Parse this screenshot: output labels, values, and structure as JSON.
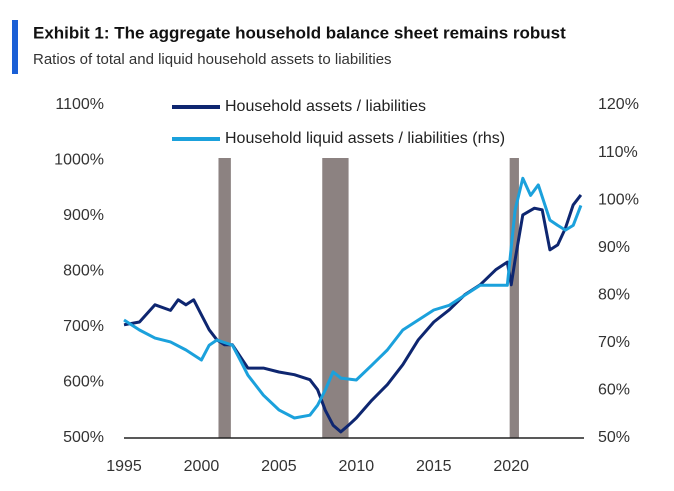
{
  "chart_data": {
    "type": "line",
    "title": "Exhibit 1: The aggregate household balance sheet remains robust",
    "subtitle": "Ratios of total and liquid household assets to liabilities",
    "xlim": [
      1995,
      2024.7
    ],
    "xticks": [
      1995,
      2000,
      2005,
      2010,
      2015,
      2020
    ],
    "ylim": [
      500,
      1100
    ],
    "yticks": [
      {
        "value": 500,
        "label": "500%"
      },
      {
        "value": 600,
        "label": "600%"
      },
      {
        "value": 700,
        "label": "700%"
      },
      {
        "value": 800,
        "label": "800%"
      },
      {
        "value": 900,
        "label": "900%"
      },
      {
        "value": 1000,
        "label": "1000%"
      },
      {
        "value": 1100,
        "label": "1100%"
      }
    ],
    "y2lim": [
      50,
      120
    ],
    "y2ticks": [
      {
        "value": 50,
        "label": "50%"
      },
      {
        "value": 60,
        "label": "60%"
      },
      {
        "value": 70,
        "label": "70%"
      },
      {
        "value": 80,
        "label": "80%"
      },
      {
        "value": 90,
        "label": "90%"
      },
      {
        "value": 100,
        "label": "100%"
      },
      {
        "value": 110,
        "label": "110%"
      },
      {
        "value": 120,
        "label": "120%"
      }
    ],
    "recessions": [
      [
        2001.1,
        2001.9
      ],
      [
        2007.8,
        2009.5
      ],
      [
        2019.9,
        2020.5
      ]
    ],
    "recession_color": "#8c8281",
    "series": [
      {
        "name": "Household assets / liabilities",
        "color": "#0e2670",
        "x": [
          1995,
          1996,
          1997,
          1998,
          1998.5,
          1999,
          1999.5,
          2000,
          2000.5,
          2001,
          2001.5,
          2002,
          2003,
          2004,
          2005,
          2006,
          2007,
          2007.5,
          2008,
          2008.5,
          2009,
          2009.5,
          2010,
          2011,
          2012,
          2013,
          2014,
          2015,
          2016,
          2017,
          2018,
          2019,
          2019.75,
          2020,
          2020.25,
          2020.75,
          2021.5,
          2022,
          2022.5,
          2023,
          2023.5,
          2024,
          2024.5
        ],
        "values": [
          704,
          709,
          740,
          730,
          749,
          740,
          749,
          722,
          695,
          677,
          668,
          668,
          626,
          626,
          619,
          614,
          605,
          587,
          550,
          523,
          511,
          523,
          536,
          568,
          596,
          632,
          677,
          709,
          731,
          758,
          776,
          803,
          817,
          776,
          821,
          902,
          914,
          911,
          839,
          848,
          878,
          920,
          938
        ]
      },
      {
        "name": "Household liquid assets / liabilities (rhs)",
        "color": "#1ba1dc",
        "axis": "y2",
        "x": [
          1995,
          1996,
          1997,
          1998,
          1999,
          2000,
          2000.5,
          2001,
          2002,
          2002.5,
          2003,
          2004,
          2005,
          2006,
          2007,
          2007.5,
          2008,
          2008.5,
          2009,
          2010,
          2011,
          2012,
          2013,
          2014,
          2015,
          2016,
          2017,
          2018,
          2019,
          2019.75,
          2020.25,
          2020.75,
          2021.25,
          2021.75,
          2022.5,
          2023,
          2023.5,
          2024,
          2024.5
        ],
        "values": [
          74.8,
          72.7,
          71,
          70.2,
          68.5,
          66.4,
          69.5,
          70.6,
          69.5,
          66.4,
          63.2,
          59,
          55.9,
          54.2,
          54.8,
          56.9,
          60.1,
          63.9,
          62.6,
          62.2,
          65.3,
          68.5,
          72.7,
          74.8,
          76.9,
          77.9,
          80,
          82.1,
          82.1,
          82.1,
          97.9,
          104.6,
          101,
          103.2,
          95.8,
          94.7,
          93.7,
          94.7,
          98.9
        ]
      }
    ]
  }
}
